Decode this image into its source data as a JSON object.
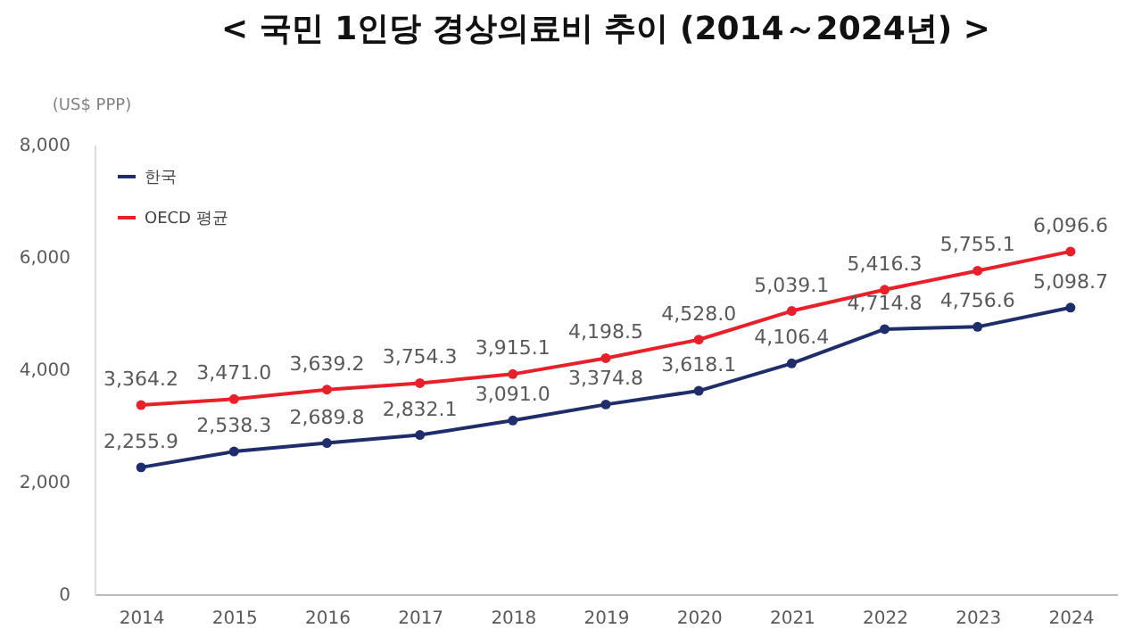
{
  "chart_data": {
    "type": "line",
    "title": "< 국민 1인당 경상의료비 추이 (2014～2024년) >",
    "ylabel": "(US$ PPP)",
    "categories": [
      "2014",
      "2015",
      "2016",
      "2017",
      "2018",
      "2019",
      "2020",
      "2021",
      "2022",
      "2023",
      "2024"
    ],
    "series": [
      {
        "name": "한국",
        "color": "#1f2d6b",
        "values": [
          2255.9,
          2538.3,
          2689.8,
          2832.1,
          3091.0,
          3374.8,
          3618.1,
          4106.4,
          4714.8,
          4756.6,
          5098.7
        ],
        "value_labels": [
          "2,255.9",
          "2,538.3",
          "2,689.8",
          "2,832.1",
          "3,091.0",
          "3,374.8",
          "3,618.1",
          "4,106.4",
          "4,714.8",
          "4,756.6",
          "5,098.7"
        ]
      },
      {
        "name": "OECD 평균",
        "color": "#e8202a",
        "values": [
          3364.2,
          3471.0,
          3639.2,
          3754.3,
          3915.1,
          4198.5,
          4528.0,
          5039.1,
          5416.3,
          5755.1,
          6096.6
        ],
        "value_labels": [
          "3,364.2",
          "3,471.0",
          "3,639.2",
          "3,754.3",
          "3,915.1",
          "4,198.5",
          "4,528.0",
          "5,039.1",
          "5,416.3",
          "5,755.1",
          "6,096.6"
        ]
      }
    ],
    "ylim": [
      0,
      8000
    ],
    "yticks": [
      {
        "value": 0,
        "label": "0"
      },
      {
        "value": 2000,
        "label": "2,000"
      },
      {
        "value": 4000,
        "label": "4,000"
      },
      {
        "value": 6000,
        "label": "6,000"
      },
      {
        "value": 8000,
        "label": "8,000"
      }
    ],
    "grid": false,
    "legend": "top left",
    "marker": "circle",
    "line_style": "solid"
  }
}
